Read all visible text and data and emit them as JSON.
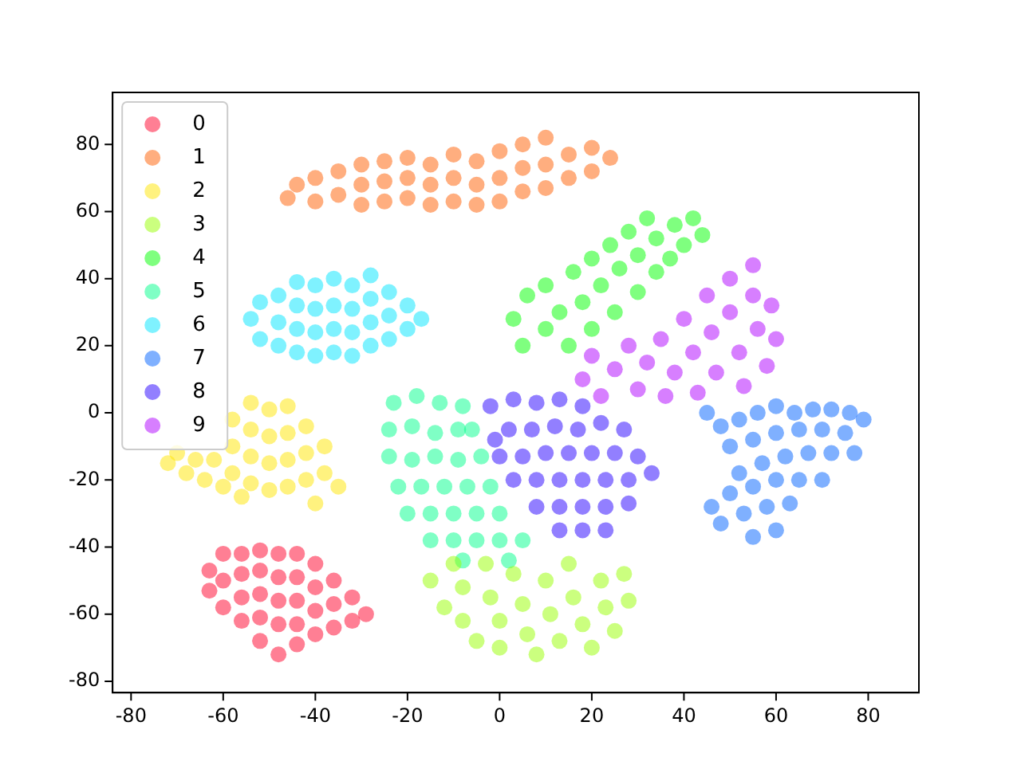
{
  "chart_data": {
    "type": "scatter",
    "xlim": [
      -84,
      91
    ],
    "ylim": [
      -83.4,
      95.5
    ],
    "xticks": [
      -80,
      -60,
      -40,
      -20,
      0,
      20,
      40,
      60,
      80
    ],
    "yticks": [
      -80,
      -60,
      -40,
      -20,
      0,
      20,
      40,
      60,
      80
    ],
    "grid": false,
    "legend": "top left",
    "marker": "circle",
    "series": [
      {
        "name": "0",
        "color": "#ff0029",
        "x": [
          -63,
          -63,
          -60,
          -60,
          -60,
          -56,
          -56,
          -56,
          -56,
          -52,
          -52,
          -52,
          -52,
          -52,
          -48,
          -48,
          -48,
          -48,
          -48,
          -44,
          -44,
          -44,
          -44,
          -44,
          -40,
          -40,
          -40,
          -40,
          -36,
          -36,
          -36,
          -32,
          -32,
          -29
        ],
        "values": [
          -47,
          -53,
          -42,
          -50,
          -58,
          -42,
          -48,
          -55,
          -62,
          -41,
          -47,
          -54,
          -61,
          -68,
          -42,
          -49,
          -56,
          -63,
          -72,
          -42,
          -49,
          -56,
          -63,
          -69,
          -45,
          -52,
          -59,
          -66,
          -50,
          -57,
          -64,
          -55,
          -62,
          -60
        ]
      },
      {
        "name": "1",
        "color": "#ff5e00",
        "x": [
          -46,
          -44,
          -40,
          -40,
          -35,
          -35,
          -30,
          -30,
          -30,
          -25,
          -25,
          -25,
          -20,
          -20,
          -20,
          -15,
          -15,
          -15,
          -10,
          -10,
          -10,
          -5,
          -5,
          -5,
          0,
          0,
          0,
          5,
          5,
          5,
          10,
          10,
          10,
          15,
          15,
          20,
          20,
          24
        ],
        "values": [
          64,
          68,
          63,
          70,
          65,
          72,
          62,
          68,
          74,
          63,
          69,
          75,
          64,
          70,
          76,
          62,
          68,
          74,
          63,
          70,
          77,
          62,
          68,
          75,
          63,
          70,
          78,
          66,
          73,
          80,
          67,
          74,
          82,
          70,
          77,
          72,
          79,
          76
        ]
      },
      {
        "name": "2",
        "color": "#ffe600",
        "x": [
          -70,
          -68,
          -66,
          -72,
          -64,
          -38,
          -35,
          -62,
          -60,
          -58,
          -58,
          -58,
          -56,
          -54,
          -54,
          -54,
          -54,
          -50,
          -50,
          -50,
          -50,
          -46,
          -46,
          -46,
          -46,
          -42,
          -42,
          -42,
          -38,
          -40
        ],
        "values": [
          -12,
          -18,
          -14,
          -15,
          -20,
          -18,
          -22,
          -14,
          -22,
          -2,
          -10,
          -18,
          -25,
          3,
          -5,
          -13,
          -21,
          1,
          -7,
          -15,
          -23,
          2,
          -6,
          -14,
          -22,
          -4,
          -12,
          -20,
          -10,
          -27
        ]
      },
      {
        "name": "3",
        "color": "#97ff00",
        "x": [
          -15,
          -12,
          -10,
          -8,
          -8,
          -5,
          -3,
          -2,
          0,
          0,
          3,
          5,
          6,
          8,
          10,
          11,
          13,
          15,
          16,
          18,
          20,
          22,
          23,
          25,
          27,
          28
        ],
        "values": [
          -50,
          -58,
          -45,
          -52,
          -62,
          -68,
          -45,
          -55,
          -62,
          -70,
          -48,
          -57,
          -66,
          -72,
          -50,
          -60,
          -68,
          -45,
          -55,
          -63,
          -70,
          -50,
          -58,
          -65,
          -48,
          -56
        ]
      },
      {
        "name": "4",
        "color": "#00ff00",
        "x": [
          3,
          5,
          6,
          10,
          10,
          13,
          15,
          16,
          18,
          20,
          20,
          22,
          24,
          25,
          26,
          28,
          30,
          30,
          32,
          34,
          34,
          37,
          38,
          40,
          42,
          44
        ],
        "values": [
          28,
          20,
          35,
          25,
          38,
          30,
          20,
          42,
          33,
          25,
          46,
          38,
          50,
          30,
          43,
          54,
          36,
          47,
          58,
          42,
          52,
          46,
          56,
          50,
          58,
          53
        ]
      },
      {
        "name": "5",
        "color": "#00ff8c",
        "x": [
          -23,
          -18,
          -13,
          -8,
          -24,
          -19,
          -14,
          -9,
          -6,
          -24,
          -19,
          -14,
          -9,
          -4,
          -22,
          -17,
          -12,
          -7,
          -2,
          -20,
          -15,
          -10,
          -5,
          0,
          -15,
          -10,
          -5,
          0,
          5,
          -8,
          2
        ],
        "values": [
          3,
          5,
          3,
          2,
          -5,
          -4,
          -6,
          -5,
          -5,
          -13,
          -14,
          -13,
          -14,
          -13,
          -22,
          -22,
          -22,
          -22,
          -22,
          -30,
          -30,
          -30,
          -30,
          -30,
          -38,
          -38,
          -38,
          -38,
          -38,
          -44,
          -44
        ]
      },
      {
        "name": "6",
        "color": "#00e5ff",
        "x": [
          -54,
          -52,
          -52,
          -48,
          -48,
          -48,
          -44,
          -44,
          -44,
          -44,
          -40,
          -40,
          -40,
          -40,
          -36,
          -36,
          -36,
          -36,
          -32,
          -32,
          -32,
          -32,
          -28,
          -28,
          -28,
          -28,
          -24,
          -24,
          -24,
          -20,
          -20,
          -17
        ],
        "values": [
          28,
          22,
          33,
          20,
          27,
          35,
          18,
          25,
          32,
          39,
          17,
          24,
          31,
          38,
          18,
          25,
          32,
          40,
          17,
          24,
          31,
          38,
          20,
          27,
          34,
          41,
          22,
          29,
          36,
          25,
          32,
          28
        ]
      },
      {
        "name": "7",
        "color": "#0062ff",
        "x": [
          45,
          48,
          52,
          56,
          60,
          64,
          68,
          72,
          76,
          79,
          50,
          55,
          60,
          65,
          70,
          75,
          52,
          57,
          62,
          67,
          72,
          77,
          46,
          50,
          55,
          60,
          65,
          70,
          48,
          53,
          58,
          63,
          55,
          60
        ],
        "values": [
          0,
          -4,
          -2,
          0,
          2,
          0,
          1,
          1,
          0,
          -2,
          -10,
          -8,
          -6,
          -5,
          -5,
          -6,
          -18,
          -15,
          -13,
          -12,
          -12,
          -12,
          -28,
          -24,
          -22,
          -20,
          -20,
          -20,
          -33,
          -30,
          -28,
          -27,
          -37,
          -35
        ]
      },
      {
        "name": "8",
        "color": "#2600ff",
        "x": [
          -2,
          3,
          8,
          13,
          18,
          -1,
          2,
          7,
          12,
          17,
          22,
          27,
          0,
          5,
          10,
          15,
          20,
          25,
          30,
          3,
          8,
          13,
          18,
          23,
          28,
          33,
          8,
          13,
          18,
          23,
          28,
          13,
          18,
          23
        ],
        "values": [
          2,
          4,
          3,
          4,
          2,
          -8,
          -5,
          -5,
          -4,
          -5,
          -3,
          -5,
          -13,
          -13,
          -12,
          -12,
          -12,
          -12,
          -13,
          -20,
          -20,
          -20,
          -20,
          -20,
          -20,
          -18,
          -28,
          -28,
          -28,
          -28,
          -27,
          -35,
          -35,
          -35
        ]
      },
      {
        "name": "9",
        "color": "#b000ff",
        "x": [
          18,
          20,
          22,
          25,
          28,
          30,
          32,
          35,
          36,
          38,
          40,
          42,
          43,
          45,
          46,
          47,
          50,
          50,
          52,
          53,
          55,
          55,
          56,
          58,
          59,
          60
        ],
        "values": [
          10,
          17,
          5,
          13,
          20,
          7,
          15,
          22,
          5,
          12,
          28,
          18,
          6,
          35,
          24,
          12,
          40,
          30,
          18,
          8,
          44,
          35,
          25,
          14,
          32,
          22
        ]
      }
    ]
  }
}
